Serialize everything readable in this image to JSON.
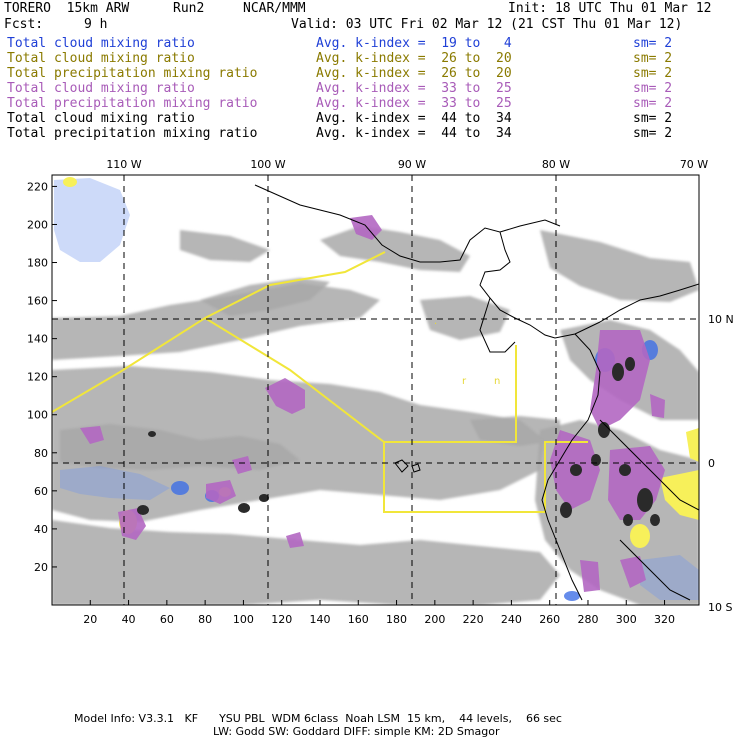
{
  "header": {
    "model": "TORERO  15km ARW",
    "run": "Run2",
    "org": "NCAR/MMM",
    "init": "Init: 18 UTC Thu 01 Mar 12",
    "fcst_label": "Fcst:",
    "fcst_value": "9 h",
    "valid": "Valid: 03 UTC Fri 02 Mar 12 (21 CST Thu 01 Mar 12)"
  },
  "legend_lines": [
    {
      "field": "Total cloud mixing ratio",
      "kindex": "Avg. k-index =  19 to   4",
      "sm": "sm= 2",
      "color": "#1f3fd6"
    },
    {
      "field": "Total cloud mixing ratio",
      "kindex": "Avg. k-index =  26 to  20",
      "sm": "sm= 2",
      "color": "#8a7a00"
    },
    {
      "field": "Total precipitation mixing ratio",
      "kindex": "Avg. k-index =  26 to  20",
      "sm": "sm= 2",
      "color": "#8a7a00"
    },
    {
      "field": "Total cloud mixing ratio",
      "kindex": "Avg. k-index =  33 to  25",
      "sm": "sm= 2",
      "color": "#a85bb8"
    },
    {
      "field": "Total precipitation mixing ratio",
      "kindex": "Avg. k-index =  33 to  25",
      "sm": "sm= 2",
      "color": "#a85bb8"
    },
    {
      "field": "Total cloud mixing ratio",
      "kindex": "Avg. k-index =  44 to  34",
      "sm": "sm= 2",
      "color": "#000000"
    },
    {
      "field": "Total precipitation mixing ratio",
      "kindex": "Avg. k-index =  44 to  34",
      "sm": "sm= 2",
      "color": "#000000"
    }
  ],
  "axes": {
    "x_ticks": [
      "20",
      "40",
      "60",
      "80",
      "100",
      "120",
      "140",
      "160",
      "180",
      "200",
      "220",
      "240",
      "260",
      "280",
      "300",
      "320"
    ],
    "y_ticks": [
      "20",
      "40",
      "60",
      "80",
      "100",
      "120",
      "140",
      "160",
      "180",
      "200",
      "220"
    ],
    "lon_labels": [
      "110 W",
      "100 W",
      "90 W",
      "80 W",
      "70 W"
    ],
    "lat_labels": [
      "10 N",
      "0",
      "10 S"
    ]
  },
  "footer": {
    "line1": "Model Info: V3.3.1   KF      YSU PBL  WDM 6class  Noah LSM  15 km,    44 levels,    66 sec",
    "line2": "LW: Godd SW: Goddard DIFF: simple KM: 2D Smagor"
  },
  "colors": {
    "cloud_gray": "#a9a9a9",
    "k_blue": "#6f96ee",
    "k_yellow": "#f7f05a",
    "k_purple": "#b267c2",
    "k_black": "#2a2a2a",
    "outline_yellow": "#f1e63a",
    "coast": "#000000"
  }
}
